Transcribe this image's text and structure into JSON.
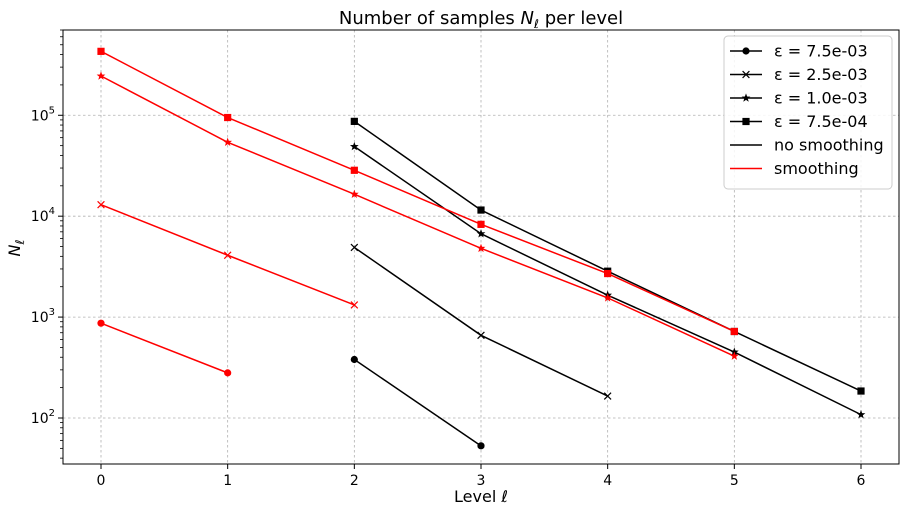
{
  "chart_data": {
    "type": "line",
    "title": "Number of samples N_ℓ per level",
    "xlabel": "Level ℓ",
    "ylabel": "N_ℓ",
    "xlim": [
      -0.3,
      6.3
    ],
    "ylim": [
      35,
      700000
    ],
    "yscale": "log",
    "grid": true,
    "legend_position": "top-right",
    "xticks": [
      "0",
      "1",
      "2",
      "3",
      "4",
      "5",
      "6"
    ],
    "yticks": [
      {
        "value": 100,
        "mantissa": "10",
        "exponent": "2"
      },
      {
        "value": 1000,
        "mantissa": "10",
        "exponent": "3"
      },
      {
        "value": 10000,
        "mantissa": "10",
        "exponent": "4"
      },
      {
        "value": 100000,
        "mantissa": "10",
        "exponent": "5"
      }
    ],
    "colors": {
      "no_smoothing": "#000000",
      "smoothing": "#ff0000"
    },
    "legend": [
      {
        "label": "ε = 7.5e-03",
        "marker": "circle",
        "style": "line-marker"
      },
      {
        "label": "ε = 2.5e-03",
        "marker": "x",
        "style": "line-marker"
      },
      {
        "label": "ε = 1.0e-03",
        "marker": "star",
        "style": "line-marker"
      },
      {
        "label": "ε = 7.5e-04",
        "marker": "square",
        "style": "line-marker"
      },
      {
        "label": "no smoothing",
        "color": "#000000",
        "style": "line"
      },
      {
        "label": "smoothing",
        "color": "#ff0000",
        "style": "line"
      }
    ],
    "series": [
      {
        "epsilon": "7.5e-03",
        "marker": "circle",
        "group": "no smoothing",
        "color": "#000000",
        "x": [
          2,
          3
        ],
        "y": [
          380,
          53
        ]
      },
      {
        "epsilon": "2.5e-03",
        "marker": "x",
        "group": "no smoothing",
        "color": "#000000",
        "x": [
          2,
          3,
          4
        ],
        "y": [
          4900,
          660,
          165
        ]
      },
      {
        "epsilon": "1.0e-03",
        "marker": "star",
        "group": "no smoothing",
        "color": "#000000",
        "x": [
          2,
          3,
          4,
          5,
          6
        ],
        "y": [
          49000,
          6700,
          1650,
          450,
          108
        ]
      },
      {
        "epsilon": "7.5e-04",
        "marker": "square",
        "group": "no smoothing",
        "color": "#000000",
        "x": [
          2,
          3,
          4,
          5,
          6
        ],
        "y": [
          87000,
          11500,
          2850,
          720,
          185
        ]
      },
      {
        "epsilon": "7.5e-03",
        "marker": "circle",
        "group": "smoothing",
        "color": "#ff0000",
        "x": [
          0,
          1
        ],
        "y": [
          870,
          280
        ]
      },
      {
        "epsilon": "2.5e-03",
        "marker": "x",
        "group": "smoothing",
        "color": "#ff0000",
        "x": [
          0,
          1,
          2
        ],
        "y": [
          13000,
          4100,
          1320
        ]
      },
      {
        "epsilon": "1.0e-03",
        "marker": "star",
        "group": "smoothing",
        "color": "#ff0000",
        "x": [
          0,
          1,
          2,
          3,
          4,
          5
        ],
        "y": [
          245000,
          54000,
          16500,
          4800,
          1550,
          410
        ]
      },
      {
        "epsilon": "7.5e-04",
        "marker": "square",
        "group": "smoothing",
        "color": "#ff0000",
        "x": [
          0,
          1,
          2,
          3,
          4,
          5
        ],
        "y": [
          430000,
          95000,
          28500,
          8300,
          2700,
          720
        ]
      }
    ]
  }
}
